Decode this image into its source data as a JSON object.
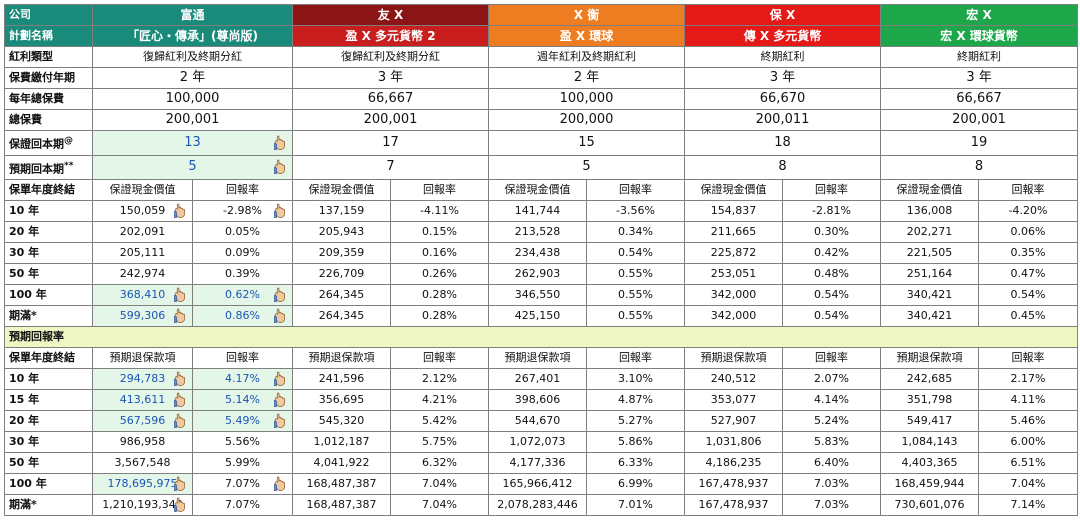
{
  "header": {
    "company_label": "公司",
    "plan_label": "計劃名稱",
    "companies": [
      "富通",
      "友 X",
      "X 衡",
      "保 X",
      "宏 X"
    ],
    "plans": [
      "「匠心・傳承」(尊尚版)",
      "盈 X 多元貨幣 2",
      "盈 X 環球",
      "傳 X 多元貨幣",
      "宏 X 環球貨幣"
    ],
    "colors": {
      "fortune": "#1a8a7a",
      "youx": "#8b1414",
      "youx_plan": "#c81e1e",
      "xheng": "#ee7d22",
      "baox": "#e61919",
      "hongx": "#1ea74a",
      "highlight_bg": "#e3f6e8",
      "highlight_text": "#1a55b5",
      "section_bg": "#eef7c4"
    }
  },
  "info_rows": [
    {
      "label": "紅利類型",
      "values": [
        "復歸紅利及終期分紅",
        "復歸紅利及終期分紅",
        "週年紅利及終期紅利",
        "終期紅利",
        "終期紅利"
      ]
    },
    {
      "label": "保費繳付年期",
      "values": [
        "2 年",
        "3 年",
        "2 年",
        "3 年",
        "3 年"
      ]
    },
    {
      "label": "每年總保費",
      "values": [
        "100,000",
        "66,667",
        "100,000",
        "66,670",
        "66,667"
      ]
    },
    {
      "label": "總保費",
      "values": [
        "200,001",
        "200,001",
        "200,000",
        "200,011",
        "200,001"
      ]
    },
    {
      "label": "保證回本期",
      "sup": "@",
      "values": [
        "13",
        "17",
        "15",
        "18",
        "19"
      ],
      "hl": [
        true,
        false,
        false,
        false,
        false
      ]
    },
    {
      "label": "預期回本期",
      "sup": "**",
      "values": [
        "5",
        "7",
        "5",
        "8",
        "8"
      ],
      "hl": [
        true,
        false,
        false,
        false,
        false
      ]
    }
  ],
  "guaranteed": {
    "row_label": "保單年度終結",
    "col_a": "保證現金價值",
    "col_b": "回報率",
    "rows": [
      {
        "year": "10 年",
        "cells": [
          [
            "150,059",
            "-2.98%"
          ],
          [
            "137,159",
            "-4.11%"
          ],
          [
            "141,744",
            "-3.56%"
          ],
          [
            "154,837",
            "-2.81%"
          ],
          [
            "136,008",
            "-4.20%"
          ]
        ],
        "hl": [
          false,
          false
        ],
        "hand": [
          true,
          true
        ]
      },
      {
        "year": "20 年",
        "cells": [
          [
            "202,091",
            "0.05%"
          ],
          [
            "205,943",
            "0.15%"
          ],
          [
            "213,528",
            "0.34%"
          ],
          [
            "211,665",
            "0.30%"
          ],
          [
            "202,271",
            "0.06%"
          ]
        ],
        "hl": [
          false,
          false
        ],
        "hand": [
          false,
          false
        ]
      },
      {
        "year": "30 年",
        "cells": [
          [
            "205,111",
            "0.09%"
          ],
          [
            "209,359",
            "0.16%"
          ],
          [
            "234,438",
            "0.54%"
          ],
          [
            "225,872",
            "0.42%"
          ],
          [
            "221,505",
            "0.35%"
          ]
        ],
        "hl": [
          false,
          false
        ],
        "hand": [
          false,
          false
        ]
      },
      {
        "year": "50 年",
        "cells": [
          [
            "242,974",
            "0.39%"
          ],
          [
            "226,709",
            "0.26%"
          ],
          [
            "262,903",
            "0.55%"
          ],
          [
            "253,051",
            "0.48%"
          ],
          [
            "251,164",
            "0.47%"
          ]
        ],
        "hl": [
          false,
          false
        ],
        "hand": [
          false,
          false
        ]
      },
      {
        "year": "100 年",
        "cells": [
          [
            "368,410",
            "0.62%"
          ],
          [
            "264,345",
            "0.28%"
          ],
          [
            "346,550",
            "0.55%"
          ],
          [
            "342,000",
            "0.54%"
          ],
          [
            "340,421",
            "0.54%"
          ]
        ],
        "hl": [
          true,
          true
        ],
        "hand": [
          true,
          true
        ]
      },
      {
        "year": "期滿*",
        "cells": [
          [
            "599,306",
            "0.86%"
          ],
          [
            "264,345",
            "0.28%"
          ],
          [
            "425,150",
            "0.55%"
          ],
          [
            "342,000",
            "0.54%"
          ],
          [
            "340,421",
            "0.45%"
          ]
        ],
        "hl": [
          true,
          true
        ],
        "hand": [
          true,
          true
        ]
      }
    ]
  },
  "expected_section_label": "預期回報率",
  "expected": {
    "row_label": "保單年度終結",
    "col_a": "預期退保款項",
    "col_b": "回報率",
    "rows": [
      {
        "year": "10 年",
        "cells": [
          [
            "294,783",
            "4.17%"
          ],
          [
            "241,596",
            "2.12%"
          ],
          [
            "267,401",
            "3.10%"
          ],
          [
            "240,512",
            "2.07%"
          ],
          [
            "242,685",
            "2.17%"
          ]
        ],
        "hl": [
          true,
          true
        ],
        "hand": [
          true,
          true
        ]
      },
      {
        "year": "15 年",
        "cells": [
          [
            "413,611",
            "5.14%"
          ],
          [
            "356,695",
            "4.21%"
          ],
          [
            "398,606",
            "4.87%"
          ],
          [
            "353,077",
            "4.14%"
          ],
          [
            "351,798",
            "4.11%"
          ]
        ],
        "hl": [
          true,
          true
        ],
        "hand": [
          true,
          true
        ]
      },
      {
        "year": "20 年",
        "cells": [
          [
            "567,596",
            "5.49%"
          ],
          [
            "545,320",
            "5.42%"
          ],
          [
            "544,670",
            "5.27%"
          ],
          [
            "527,907",
            "5.24%"
          ],
          [
            "549,417",
            "5.46%"
          ]
        ],
        "hl": [
          true,
          true
        ],
        "hand": [
          true,
          true
        ]
      },
      {
        "year": "30 年",
        "cells": [
          [
            "986,958",
            "5.56%"
          ],
          [
            "1,012,187",
            "5.75%"
          ],
          [
            "1,072,073",
            "5.86%"
          ],
          [
            "1,031,806",
            "5.83%"
          ],
          [
            "1,084,143",
            "6.00%"
          ]
        ],
        "hl": [
          false,
          false
        ],
        "hand": [
          false,
          false
        ]
      },
      {
        "year": "50 年",
        "cells": [
          [
            "3,567,548",
            "5.99%"
          ],
          [
            "4,041,922",
            "6.32%"
          ],
          [
            "4,177,336",
            "6.33%"
          ],
          [
            "4,186,235",
            "6.40%"
          ],
          [
            "4,403,365",
            "6.51%"
          ]
        ],
        "hl": [
          false,
          false
        ],
        "hand": [
          false,
          false
        ]
      },
      {
        "year": "100 年",
        "cells": [
          [
            "178,695,975",
            "7.07%"
          ],
          [
            "168,487,387",
            "7.04%"
          ],
          [
            "165,966,412",
            "6.99%"
          ],
          [
            "167,478,937",
            "7.03%"
          ],
          [
            "168,459,944",
            "7.04%"
          ]
        ],
        "hl": [
          true,
          false
        ],
        "hand": [
          true,
          true
        ]
      },
      {
        "year": "期滿*",
        "cells": [
          [
            "1,210,193,343",
            "7.07%"
          ],
          [
            "168,487,387",
            "7.04%"
          ],
          [
            "2,078,283,446",
            "7.01%"
          ],
          [
            "167,478,937",
            "7.03%"
          ],
          [
            "730,601,076",
            "7.14%"
          ]
        ],
        "hl": [
          false,
          false
        ],
        "hand": [
          true,
          false
        ]
      }
    ]
  }
}
